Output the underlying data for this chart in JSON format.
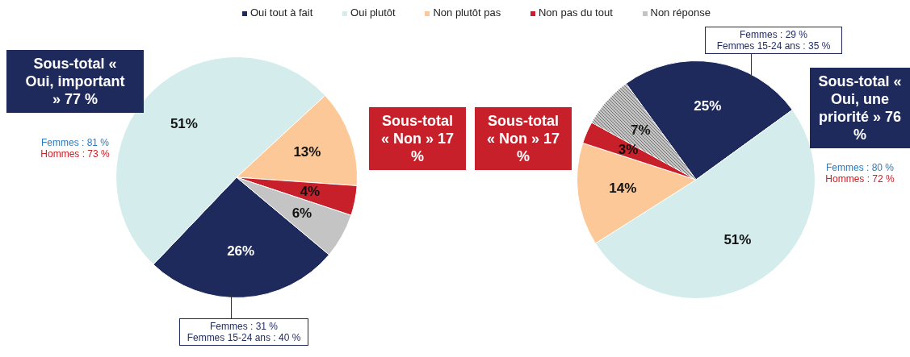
{
  "chart_data": [
    {
      "type": "pie",
      "categories": [
        "Oui tout à fait",
        "Oui plutôt",
        "Non plutôt pas",
        "Non pas du tout",
        "Non réponse"
      ],
      "values": [
        26,
        51,
        13,
        4,
        6
      ],
      "value_labels": [
        "26%",
        "51%",
        "13%",
        "4%",
        "6%"
      ],
      "colors": [
        "#1f2a5c",
        "#d5ecec",
        "#fdc897",
        "#c8202a",
        "#c4c4c4"
      ],
      "legend": "top",
      "annotations": [
        "Sous-total « Oui, important » 77 %",
        "Femmes : 81 %",
        "Hommes : 73 %",
        "Femmes : 31 %",
        "Femmes 15-24 ans : 40 %",
        "Sous-total « Non » 17 %"
      ]
    },
    {
      "type": "pie",
      "categories": [
        null,
        null,
        null,
        null,
        null
      ],
      "values": [
        25,
        51,
        14,
        3,
        7
      ],
      "value_labels": [
        "25%",
        "51%",
        "14%",
        "3%",
        "7%"
      ],
      "colors": [
        "#1f2a5c",
        "#d5ecec",
        "#fdc897",
        "#c8202a",
        "#c4c4c4"
      ],
      "annotations": [
        "Sous-total « Non » 17 %",
        "Femmes : 29 %",
        "Femmes 15-24 ans : 35 %",
        "Sous-total « Oui, une priorité » 76 %",
        "Femmes : 80 %",
        "Hommes : 72 %"
      ]
    }
  ]
}
